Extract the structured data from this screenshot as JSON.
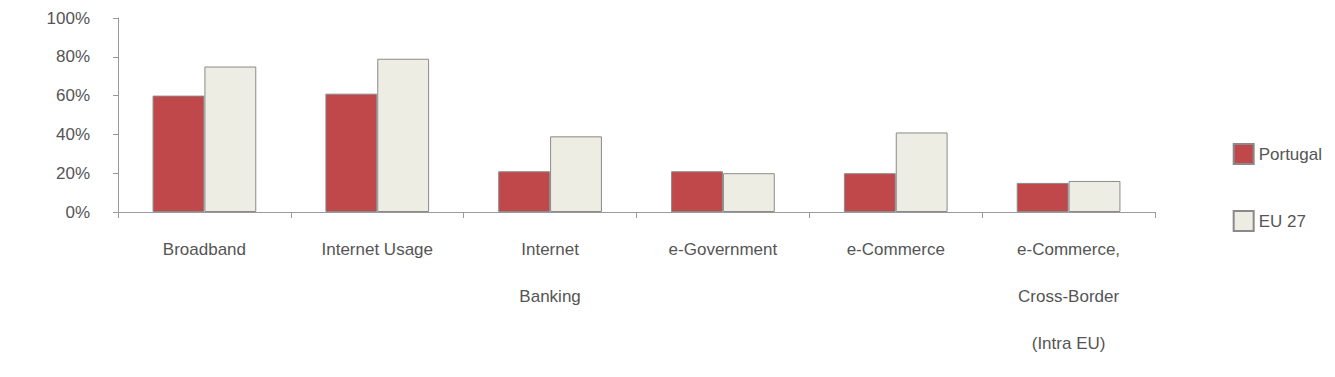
{
  "chart_data": {
    "type": "bar",
    "categories": [
      "Broadband",
      "Internet Usage",
      "Internet\nBanking",
      "e-Government",
      "e-Commerce",
      "e-Commerce,\nCross-Border\n(Intra EU)"
    ],
    "series": [
      {
        "name": "Portugal",
        "color": "#c0484a",
        "values": [
          60,
          61,
          21,
          21,
          20,
          15
        ]
      },
      {
        "name": "EU 27",
        "color": "#edede3",
        "values": [
          75,
          79,
          39,
          20,
          41,
          16
        ]
      }
    ],
    "ylim": [
      0,
      100
    ],
    "yticks": [
      {
        "value": 0,
        "label": "0%"
      },
      {
        "value": 20,
        "label": "20%"
      },
      {
        "value": 40,
        "label": "40%"
      },
      {
        "value": 60,
        "label": "60%"
      },
      {
        "value": 80,
        "label": "80%"
      },
      {
        "value": 100,
        "label": "100%"
      }
    ],
    "grid": false,
    "legend": "right"
  }
}
